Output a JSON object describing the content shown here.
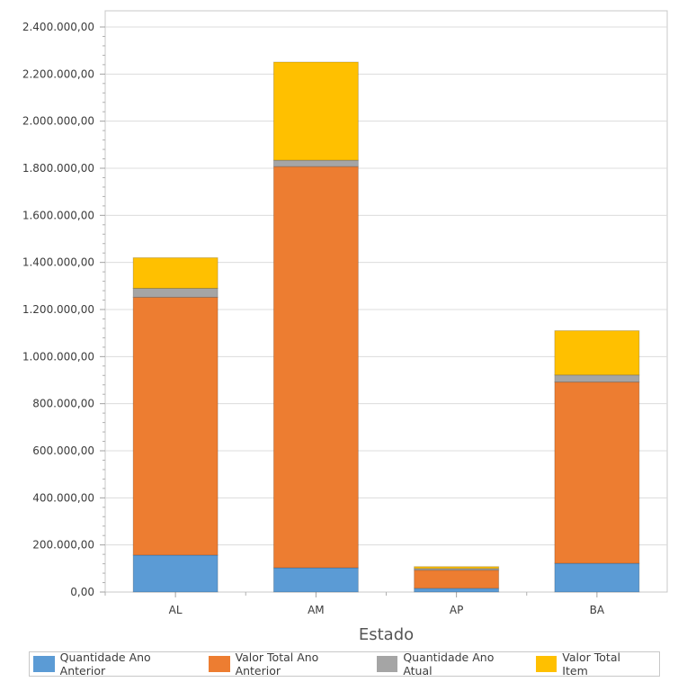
{
  "chart_data": {
    "type": "bar",
    "stacked": true,
    "title": "",
    "xlabel": "Estado",
    "ylabel": "",
    "ylim": [
      0,
      2400000
    ],
    "yticks": [
      "0,00",
      "200.000,00",
      "400.000,00",
      "600.000,00",
      "800.000,00",
      "1.000.000,00",
      "1.200.000,00",
      "1.400.000,00",
      "1.600.000,00",
      "1.800.000,00",
      "2.000.000,00",
      "2.200.000,00",
      "2.400.000,00"
    ],
    "grid": true,
    "legend_position": "bottom",
    "categories": [
      "AL",
      "AM",
      "AP",
      "BA"
    ],
    "series": [
      {
        "name": "Quantidade Ano Anterior",
        "color": "#5b9bd5",
        "values": [
          157000,
          103000,
          16000,
          122000
        ]
      },
      {
        "name": "Valor Total Ano Anterior",
        "color": "#ed7d31",
        "values": [
          1095000,
          1704000,
          77000,
          770000
        ]
      },
      {
        "name": "Quantidade Ano Atual",
        "color": "#a5a5a5",
        "values": [
          38000,
          27000,
          7000,
          30000
        ]
      },
      {
        "name": "Valor Total Item",
        "color": "#ffc000",
        "values": [
          130000,
          417000,
          8000,
          188000
        ]
      }
    ]
  }
}
